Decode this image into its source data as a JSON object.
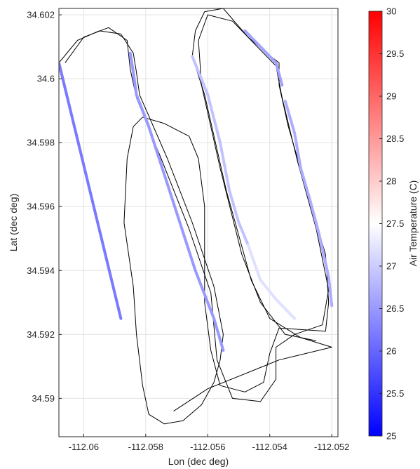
{
  "chart_data": {
    "type": "line",
    "xlabel": "Lon (dec deg)",
    "ylabel": "Lat (dec deg)",
    "xlim": [
      -112.0608,
      -112.0518
    ],
    "ylim": [
      34.5888,
      34.6022
    ],
    "x_ticks": [
      "-112.06",
      "-112.058",
      "-112.056",
      "-112.054",
      "-112.052"
    ],
    "x_tick_values": [
      -112.06,
      -112.058,
      -112.056,
      -112.054,
      -112.052
    ],
    "y_ticks": [
      "34.59",
      "34.592",
      "34.594",
      "34.596",
      "34.598",
      "34.6",
      "34.602"
    ],
    "y_tick_values": [
      34.59,
      34.592,
      34.594,
      34.596,
      34.598,
      34.6,
      34.602
    ],
    "grid": true,
    "colorbar": {
      "label": "Air Temperature (C)",
      "range": [
        25,
        30
      ],
      "ticks": [
        "25",
        "25.5",
        "26",
        "26.5",
        "27",
        "27.5",
        "28",
        "28.5",
        "29",
        "29.5",
        "30"
      ],
      "tick_values": [
        25,
        25.5,
        26,
        26.5,
        27,
        27.5,
        28,
        28.5,
        29,
        29.5,
        30
      ],
      "colormap": [
        "#0000ff",
        "#ffffff",
        "#ff0000"
      ]
    },
    "flight_track": [
      {
        "name": "",
        "color": "#000000",
        "points": [
          [
            -112.0608,
            34.6005
          ],
          [
            -112.0602,
            34.6012
          ],
          [
            -112.0595,
            34.6015
          ],
          [
            -112.0588,
            34.6014
          ],
          [
            -112.0584,
            34.6008
          ],
          [
            -112.0583,
            34.6002
          ],
          [
            -112.0582,
            34.5995
          ],
          [
            -112.0573,
            34.5975
          ],
          [
            -112.0565,
            34.5955
          ],
          [
            -112.0558,
            34.5935
          ],
          [
            -112.0555,
            34.592
          ],
          [
            -112.0556,
            34.5912
          ],
          [
            -112.0558,
            34.5905
          ],
          [
            -112.0562,
            34.5898
          ],
          [
            -112.0568,
            34.5893
          ],
          [
            -112.0574,
            34.5892
          ],
          [
            -112.0579,
            34.5895
          ],
          [
            -112.0581,
            34.5904
          ],
          [
            -112.0583,
            34.592
          ],
          [
            -112.0584,
            34.5935
          ],
          [
            -112.0587,
            34.5955
          ],
          [
            -112.0586,
            34.5975
          ],
          [
            -112.0584,
            34.5985
          ],
          [
            -112.0581,
            34.5988
          ],
          [
            -112.0574,
            34.5986
          ],
          [
            -112.0566,
            34.5982
          ],
          [
            -112.0563,
            34.5975
          ],
          [
            -112.0561,
            34.596
          ],
          [
            -112.0561,
            34.5945
          ],
          [
            -112.0561,
            34.593
          ],
          [
            -112.0559,
            34.5915
          ],
          [
            -112.0556,
            34.5904
          ],
          [
            -112.0548,
            34.5902
          ],
          [
            -112.0542,
            34.5905
          ],
          [
            -112.054,
            34.5914
          ],
          [
            -112.0537,
            34.5922
          ],
          [
            -112.0522,
            34.5921
          ],
          [
            -112.0521,
            34.593
          ],
          [
            -112.0522,
            34.5945
          ],
          [
            -112.0528,
            34.5965
          ],
          [
            -112.0534,
            34.5985
          ],
          [
            -112.0537,
            34.5998
          ],
          [
            -112.0537,
            34.6005
          ],
          [
            -112.0541,
            34.6008
          ],
          [
            -112.0547,
            34.6013
          ],
          [
            -112.0555,
            34.6022
          ],
          [
            -112.0561,
            34.6021
          ],
          [
            -112.0564,
            34.6015
          ],
          [
            -112.0565,
            34.6007
          ],
          [
            -112.0561,
            34.5995
          ],
          [
            -112.0554,
            34.5965
          ],
          [
            -112.0546,
            34.5937
          ],
          [
            -112.054,
            34.5925
          ],
          [
            -112.053,
            34.5919
          ],
          [
            -112.052,
            34.5916
          ],
          [
            -112.0537,
            34.5912
          ],
          [
            -112.056,
            34.5903
          ],
          [
            -112.0571,
            34.5896
          ]
        ]
      },
      {
        "name": "",
        "color": "#000000",
        "points": [
          [
            -112.0606,
            34.6005
          ],
          [
            -112.06,
            34.6013
          ],
          [
            -112.0592,
            34.6016
          ],
          [
            -112.0586,
            34.6012
          ],
          [
            -112.0585,
            34.6003
          ],
          [
            -112.0583,
            34.5994
          ],
          [
            -112.0575,
            34.5975
          ],
          [
            -112.0566,
            34.5953
          ],
          [
            -112.0559,
            34.5933
          ],
          [
            -112.0557,
            34.5912
          ],
          [
            -112.0552,
            34.59
          ],
          [
            -112.0543,
            34.5899
          ],
          [
            -112.0538,
            34.5906
          ],
          [
            -112.0538,
            34.5916
          ],
          [
            -112.0532,
            34.592
          ],
          [
            -112.0523,
            34.5923
          ],
          [
            -112.0521,
            34.5934
          ],
          [
            -112.0525,
            34.5953
          ],
          [
            -112.0531,
            34.5974
          ],
          [
            -112.0536,
            34.5994
          ],
          [
            -112.0538,
            34.6004
          ],
          [
            -112.0544,
            34.601
          ],
          [
            -112.0552,
            34.6018
          ],
          [
            -112.056,
            34.602
          ],
          [
            -112.0563,
            34.6012
          ],
          [
            -112.0562,
            34.5998
          ],
          [
            -112.0556,
            34.5972
          ],
          [
            -112.0549,
            34.5945
          ],
          [
            -112.0543,
            34.593
          ],
          [
            -112.0535,
            34.592
          ],
          [
            -112.0525,
            34.5918
          ]
        ]
      }
    ],
    "colored_segments": [
      {
        "temperature": 26.2,
        "points": [
          [
            -112.0608,
            34.6005
          ],
          [
            -112.0603,
            34.5985
          ],
          [
            -112.0598,
            34.5965
          ],
          [
            -112.0593,
            34.5945
          ],
          [
            -112.0588,
            34.5925
          ]
        ]
      },
      {
        "temperature": 26.5,
        "points": [
          [
            -112.0585,
            34.6008
          ],
          [
            -112.0584,
            34.6002
          ],
          [
            -112.0583,
            34.5995
          ],
          [
            -112.0579,
            34.5985
          ],
          [
            -112.0574,
            34.597
          ],
          [
            -112.0569,
            34.5955
          ],
          [
            -112.0564,
            34.594
          ],
          [
            -112.0558,
            34.5925
          ],
          [
            -112.0555,
            34.5915
          ]
        ]
      },
      {
        "temperature": 26.9,
        "points": [
          [
            -112.0565,
            34.6007
          ],
          [
            -112.056,
            34.5995
          ],
          [
            -112.0556,
            34.598
          ],
          [
            -112.0553,
            34.5965
          ],
          [
            -112.055,
            34.5955
          ],
          [
            -112.0547,
            34.5948
          ]
        ]
      },
      {
        "temperature": 27.2,
        "points": [
          [
            -112.0547,
            34.5948
          ],
          [
            -112.0543,
            34.5937
          ],
          [
            -112.0538,
            34.5931
          ],
          [
            -112.0532,
            34.5925
          ]
        ]
      },
      {
        "temperature": 26.6,
        "points": [
          [
            -112.0548,
            34.6015
          ],
          [
            -112.0542,
            34.6009
          ],
          [
            -112.0538,
            34.6005
          ],
          [
            -112.0536,
            34.5998
          ]
        ]
      },
      {
        "temperature": 26.7,
        "points": [
          [
            -112.0535,
            34.5993
          ],
          [
            -112.0532,
            34.5983
          ],
          [
            -112.053,
            34.5972
          ],
          [
            -112.0527,
            34.5962
          ],
          [
            -112.0524,
            34.5951
          ],
          [
            -112.0521,
            34.5938
          ],
          [
            -112.052,
            34.5929
          ]
        ]
      }
    ]
  }
}
